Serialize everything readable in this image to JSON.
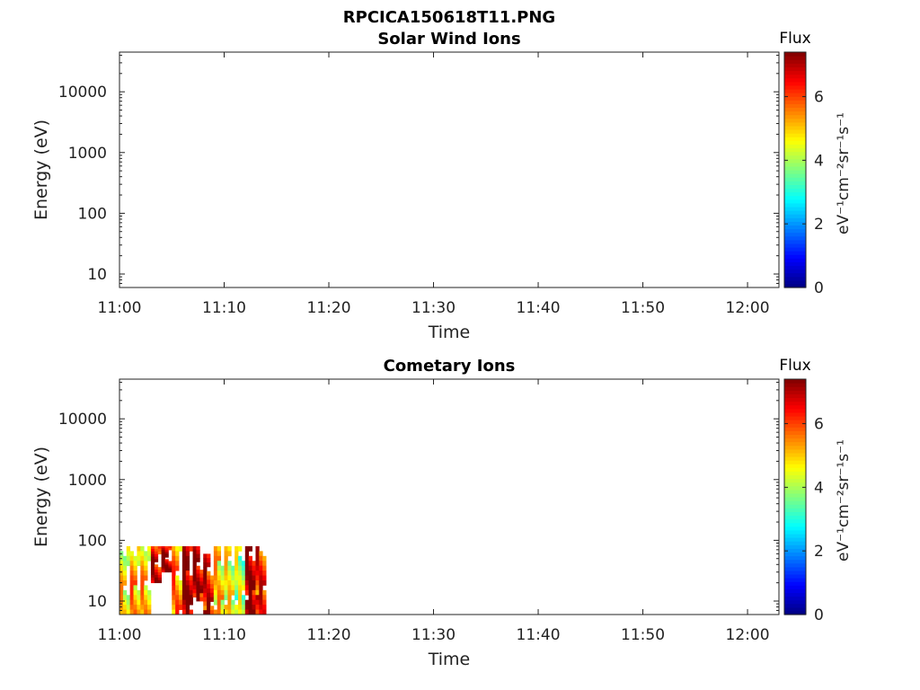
{
  "figure_title": "RPCICA150618T11.PNG",
  "chart_data": [
    {
      "type": "heatmap",
      "title": "Solar Wind Ions",
      "xlabel": "Time",
      "ylabel": "Energy (eV)",
      "x_ticks": [
        "11:00",
        "11:10",
        "11:20",
        "11:30",
        "11:40",
        "11:50",
        "12:00"
      ],
      "y_ticks": [
        "10",
        "100",
        "1000",
        "10000"
      ],
      "y_scale": "log",
      "ylim": [
        6,
        45000
      ],
      "xlim": [
        "11:00",
        "12:03"
      ],
      "colorbar": {
        "title": "Flux",
        "label": "eV⁻¹cm⁻²sr⁻¹s⁻¹",
        "ticks": [
          "0",
          "2",
          "4",
          "6"
        ],
        "range": [
          0,
          7.4
        ],
        "colormap": "jet"
      },
      "data": []
    },
    {
      "type": "heatmap",
      "title": "Cometary Ions",
      "xlabel": "Time",
      "ylabel": "Energy (eV)",
      "x_ticks": [
        "11:00",
        "11:10",
        "11:20",
        "11:30",
        "11:40",
        "11:50",
        "12:00"
      ],
      "y_ticks": [
        "10",
        "100",
        "1000",
        "10000"
      ],
      "y_scale": "log",
      "ylim": [
        6,
        45000
      ],
      "xlim": [
        "11:00",
        "12:03"
      ],
      "colorbar": {
        "title": "Flux",
        "label": "eV⁻¹cm⁻²sr⁻¹s⁻¹",
        "ticks": [
          "0",
          "2",
          "4",
          "6"
        ],
        "range": [
          0,
          7.4
        ],
        "colormap": "jet"
      },
      "data_extent": {
        "time": [
          "11:00",
          "11:13"
        ],
        "energy_eV": [
          6,
          80
        ]
      },
      "data": [
        {
          "time": "11:00",
          "energy_range_eV": [
            6,
            80
          ],
          "flux": 4.5
        },
        {
          "time": "11:01",
          "energy_range_eV": [
            6,
            80
          ],
          "flux": 5.0
        },
        {
          "time": "11:02",
          "energy_range_eV": [
            6,
            80
          ],
          "flux": 4.8
        },
        {
          "time": "11:03",
          "energy_range_eV": [
            20,
            80
          ],
          "flux": 6.5
        },
        {
          "time": "11:04",
          "energy_range_eV": [
            30,
            80
          ],
          "flux": 6.8
        },
        {
          "time": "11:05",
          "energy_range_eV": [
            6,
            80
          ],
          "flux": 5.2
        },
        {
          "time": "11:06",
          "energy_range_eV": [
            6,
            80
          ],
          "flux": 7.0
        },
        {
          "time": "11:07",
          "energy_range_eV": [
            10,
            80
          ],
          "flux": 6.6
        },
        {
          "time": "11:08",
          "energy_range_eV": [
            6,
            60
          ],
          "flux": 6.2
        },
        {
          "time": "11:09",
          "energy_range_eV": [
            6,
            80
          ],
          "flux": 4.6
        },
        {
          "time": "11:10",
          "energy_range_eV": [
            6,
            80
          ],
          "flux": 4.2
        },
        {
          "time": "11:11",
          "energy_range_eV": [
            6,
            80
          ],
          "flux": 3.8
        },
        {
          "time": "11:12",
          "energy_range_eV": [
            6,
            80
          ],
          "flux": 6.8
        },
        {
          "time": "11:13",
          "energy_range_eV": [
            6,
            80
          ],
          "flux": 6.0
        }
      ]
    }
  ]
}
